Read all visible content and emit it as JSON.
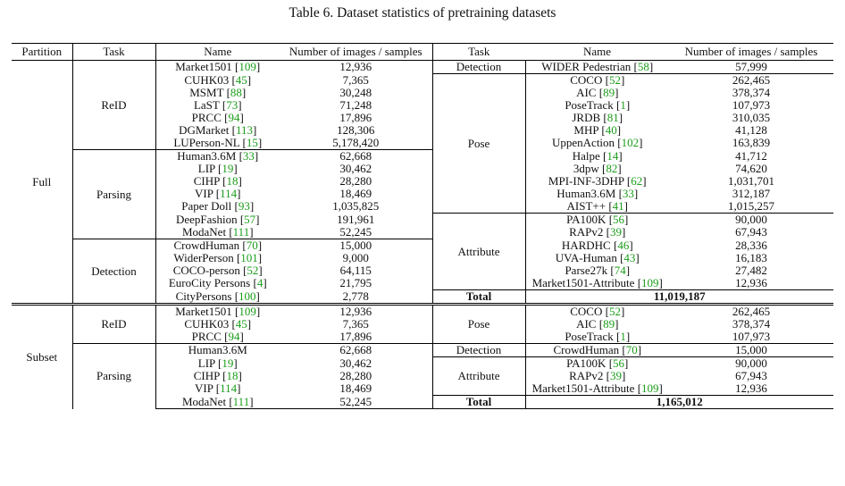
{
  "caption": "Table 6. Dataset statistics of pretraining datasets",
  "colors": {
    "reference_link": "#1a9d1a"
  },
  "headers": {
    "partition": "Partition",
    "task": "Task",
    "name": "Name",
    "number": "Number of images / samples",
    "task2": "Task",
    "name2": "Name",
    "number2": "Number of images / samples"
  },
  "sections": [
    {
      "partition": "Full",
      "left": [
        {
          "task": "ReID",
          "rows": [
            {
              "name": "Market1501",
              "ref": "109",
              "count": "12,936"
            },
            {
              "name": "CUHK03",
              "ref": "45",
              "count": "7,365"
            },
            {
              "name": "MSMT",
              "ref": "88",
              "count": "30,248"
            },
            {
              "name": "LaST",
              "ref": "73",
              "count": "71,248"
            },
            {
              "name": "PRCC",
              "ref": "94",
              "count": "17,896"
            },
            {
              "name": "DGMarket",
              "ref": "113",
              "count": "128,306"
            },
            {
              "name": "LUPerson-NL",
              "ref": "15",
              "count": "5,178,420"
            }
          ]
        },
        {
          "task": "Parsing",
          "rows": [
            {
              "name": "Human3.6M",
              "ref": "33",
              "count": "62,668"
            },
            {
              "name": "LIP",
              "ref": "19",
              "count": "30,462"
            },
            {
              "name": "CIHP",
              "ref": "18",
              "count": "28,280"
            },
            {
              "name": "VIP",
              "ref": "114",
              "count": "18,469"
            },
            {
              "name": "Paper Doll",
              "ref": "93",
              "count": "1,035,825"
            },
            {
              "name": "DeepFashion",
              "ref": "57",
              "count": "191,961"
            },
            {
              "name": "ModaNet",
              "ref": "111",
              "count": "52,245"
            }
          ]
        },
        {
          "task": "Detection",
          "rows": [
            {
              "name": "CrowdHuman",
              "ref": "70",
              "count": "15,000"
            },
            {
              "name": "WiderPerson",
              "ref": "101",
              "count": "9,000"
            },
            {
              "name": "COCO-person",
              "ref": "52",
              "count": "64,115"
            },
            {
              "name": "EuroCity Persons",
              "ref": "4",
              "count": "21,795"
            },
            {
              "name": "CityPersons",
              "ref": "100",
              "count": "2,778"
            }
          ]
        }
      ],
      "right": [
        {
          "task": "Detection",
          "rows": [
            {
              "name": "WIDER Pedestrian",
              "ref": "58",
              "count": "57,999"
            }
          ]
        },
        {
          "task": "Pose",
          "rows": [
            {
              "name": "COCO",
              "ref": "52",
              "count": "262,465"
            },
            {
              "name": "AIC",
              "ref": "89",
              "count": "378,374"
            },
            {
              "name": "PoseTrack",
              "ref": "1",
              "count": "107,973"
            },
            {
              "name": "JRDB",
              "ref": "81",
              "count": "310,035"
            },
            {
              "name": "MHP",
              "ref": "40",
              "count": "41,128"
            },
            {
              "name": "UppenAction",
              "ref": "102",
              "count": "163,839"
            },
            {
              "name": "Halpe",
              "ref": "14",
              "count": "41,712"
            },
            {
              "name": "3dpw",
              "ref": "82",
              "count": "74,620"
            },
            {
              "name": "MPI-INF-3DHP",
              "ref": "62",
              "count": "1,031,701"
            },
            {
              "name": "Human3.6M",
              "ref": "33",
              "count": "312,187"
            },
            {
              "name": "AIST++",
              "ref": "41",
              "count": "1,015,257"
            }
          ]
        },
        {
          "task": "Attribute",
          "rows": [
            {
              "name": "PA100K",
              "ref": "56",
              "count": "90,000"
            },
            {
              "name": "RAPv2",
              "ref": "39",
              "count": "67,943"
            },
            {
              "name": "HARDHC",
              "ref": "46",
              "count": "28,336"
            },
            {
              "name": "UVA-Human",
              "ref": "43",
              "count": "16,183"
            },
            {
              "name": "Parse27k",
              "ref": "74",
              "count": "27,482"
            },
            {
              "name": "Market1501-Attribute",
              "ref": "109",
              "count": "12,936"
            }
          ]
        }
      ],
      "total_label": "Total",
      "total_value": "11,019,187"
    },
    {
      "partition": "Subset",
      "left": [
        {
          "task": "ReID",
          "rows": [
            {
              "name": "Market1501",
              "ref": "109",
              "count": "12,936"
            },
            {
              "name": "CUHK03",
              "ref": "45",
              "count": "7,365"
            },
            {
              "name": "PRCC",
              "ref": "94",
              "count": "17,896"
            }
          ]
        },
        {
          "task": "Parsing",
          "rows": [
            {
              "name": "Human3.6M",
              "ref": "",
              "count": "62,668"
            },
            {
              "name": "LIP",
              "ref": "19",
              "count": "30,462"
            },
            {
              "name": "CIHP",
              "ref": "18",
              "count": "28,280"
            },
            {
              "name": "VIP",
              "ref": "114",
              "count": "18,469"
            },
            {
              "name": "ModaNet",
              "ref": "111",
              "count": "52,245"
            }
          ]
        }
      ],
      "right": [
        {
          "task": "Pose",
          "rows": [
            {
              "name": "COCO",
              "ref": "52",
              "count": "262,465"
            },
            {
              "name": "AIC",
              "ref": "89",
              "count": "378,374"
            },
            {
              "name": "PoseTrack",
              "ref": "1",
              "count": "107,973"
            }
          ]
        },
        {
          "task": "Detection",
          "rows": [
            {
              "name": "CrowdHuman",
              "ref": "70",
              "count": "15,000"
            }
          ]
        },
        {
          "task": "Attribute",
          "rows": [
            {
              "name": "PA100K",
              "ref": "56",
              "count": "90,000"
            },
            {
              "name": "RAPv2",
              "ref": "39",
              "count": "67,943"
            },
            {
              "name": "Market1501-Attribute",
              "ref": "109",
              "count": "12,936"
            }
          ]
        }
      ],
      "total_label": "Total",
      "total_value": "1,165,012"
    }
  ]
}
